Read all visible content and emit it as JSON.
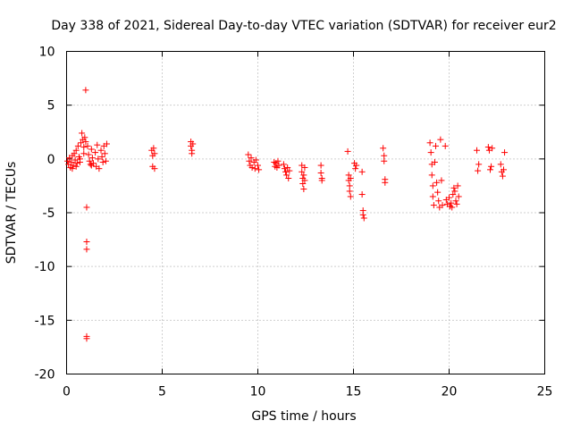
{
  "chart_data": {
    "type": "scatter",
    "title": "Day 338 of 2021, Sidereal Day-to-day VTEC variation (SDTVAR) for receiver eur2",
    "xlabel": "GPS time / hours",
    "ylabel": "SDTVAR / TECUs",
    "xlim": [
      0,
      25
    ],
    "ylim": [
      -20,
      10
    ],
    "xticks": [
      0,
      5,
      10,
      15,
      20,
      25
    ],
    "yticks": [
      -20,
      -15,
      -10,
      -5,
      0,
      5,
      10
    ],
    "grid": true,
    "marker": "+",
    "color": "#ff0000",
    "series": [
      {
        "name": "SDTVAR",
        "points": [
          [
            0.05,
            -0.2
          ],
          [
            0.1,
            -0.5
          ],
          [
            0.15,
            0.1
          ],
          [
            0.2,
            -0.8
          ],
          [
            0.25,
            -0.3
          ],
          [
            0.3,
            0.3
          ],
          [
            0.35,
            -0.6
          ],
          [
            0.4,
            0.5
          ],
          [
            0.45,
            -0.1
          ],
          [
            0.5,
            0.8
          ],
          [
            0.55,
            -0.4
          ],
          [
            0.6,
            1.2
          ],
          [
            0.65,
            0.2
          ],
          [
            0.7,
            -0.3
          ],
          [
            0.75,
            1.5
          ],
          [
            0.8,
            2.4
          ],
          [
            0.85,
            1.8
          ],
          [
            0.9,
            1.1
          ],
          [
            0.95,
            2.0
          ],
          [
            1.0,
            6.4
          ],
          [
            1.0,
            1.6
          ],
          [
            1.05,
            -4.5
          ],
          [
            1.05,
            -7.7
          ],
          [
            1.05,
            -8.4
          ],
          [
            1.05,
            -16.7
          ],
          [
            1.05,
            -16.5
          ],
          [
            1.1,
            1.2
          ],
          [
            1.15,
            0.4
          ],
          [
            1.2,
            -0.2
          ],
          [
            1.25,
            -0.5
          ],
          [
            1.3,
            0.9
          ],
          [
            1.35,
            0.1
          ],
          [
            1.4,
            -0.4
          ],
          [
            1.5,
            0.6
          ],
          [
            1.55,
            -0.7
          ],
          [
            1.6,
            1.3
          ],
          [
            1.65,
            0.0
          ],
          [
            1.7,
            -0.9
          ],
          [
            1.8,
            0.8
          ],
          [
            1.85,
            0.2
          ],
          [
            1.9,
            -0.3
          ],
          [
            1.95,
            1.2
          ],
          [
            2.0,
            0.5
          ],
          [
            2.05,
            -0.2
          ],
          [
            2.1,
            1.4
          ],
          [
            0.3,
            -0.9
          ],
          [
            0.5,
            -0.7
          ],
          [
            0.7,
            0.0
          ],
          [
            0.9,
            0.5
          ],
          [
            1.3,
            -0.6
          ],
          [
            4.45,
            0.8
          ],
          [
            4.5,
            0.3
          ],
          [
            4.5,
            -0.7
          ],
          [
            4.55,
            1.0
          ],
          [
            4.6,
            -0.9
          ],
          [
            4.6,
            0.5
          ],
          [
            6.5,
            1.6
          ],
          [
            6.5,
            1.2
          ],
          [
            6.55,
            0.8
          ],
          [
            6.55,
            0.5
          ],
          [
            6.6,
            1.4
          ],
          [
            9.5,
            0.4
          ],
          [
            9.55,
            -0.2
          ],
          [
            9.6,
            -0.6
          ],
          [
            9.65,
            0.1
          ],
          [
            9.7,
            -0.8
          ],
          [
            9.8,
            -0.3
          ],
          [
            9.85,
            -0.9
          ],
          [
            9.9,
            -0.1
          ],
          [
            10.0,
            -0.6
          ],
          [
            10.05,
            -1.0
          ],
          [
            10.85,
            -0.3
          ],
          [
            10.9,
            -0.7
          ],
          [
            10.95,
            -0.4
          ],
          [
            11.0,
            -0.8
          ],
          [
            11.05,
            -0.2
          ],
          [
            11.1,
            -0.6
          ],
          [
            11.35,
            -0.5
          ],
          [
            11.4,
            -0.9
          ],
          [
            11.45,
            -1.2
          ],
          [
            11.5,
            -1.5
          ],
          [
            11.55,
            -0.8
          ],
          [
            11.6,
            -1.8
          ],
          [
            11.65,
            -1.1
          ],
          [
            12.3,
            -0.6
          ],
          [
            12.3,
            -1.2
          ],
          [
            12.35,
            -1.8
          ],
          [
            12.35,
            -2.3
          ],
          [
            12.4,
            -2.8
          ],
          [
            12.4,
            -1.5
          ],
          [
            12.45,
            -2.0
          ],
          [
            12.45,
            -0.8
          ],
          [
            13.3,
            -0.6
          ],
          [
            13.3,
            -1.3
          ],
          [
            13.35,
            -1.8
          ],
          [
            13.35,
            -2.0
          ],
          [
            14.7,
            0.7
          ],
          [
            14.75,
            -1.5
          ],
          [
            14.75,
            -2.0
          ],
          [
            14.8,
            -2.5
          ],
          [
            14.8,
            -3.0
          ],
          [
            14.85,
            -3.5
          ],
          [
            14.85,
            -1.8
          ],
          [
            15.05,
            -0.4
          ],
          [
            15.1,
            -0.9
          ],
          [
            15.15,
            -0.6
          ],
          [
            15.45,
            -1.2
          ],
          [
            15.45,
            -3.3
          ],
          [
            15.5,
            -4.8
          ],
          [
            15.5,
            -5.2
          ],
          [
            15.55,
            -5.5
          ],
          [
            16.55,
            1.0
          ],
          [
            16.6,
            0.3
          ],
          [
            16.6,
            -0.2
          ],
          [
            16.65,
            -1.9
          ],
          [
            16.65,
            -2.2
          ],
          [
            19.0,
            1.5
          ],
          [
            19.05,
            0.6
          ],
          [
            19.1,
            -0.5
          ],
          [
            19.1,
            -1.5
          ],
          [
            19.15,
            -2.5
          ],
          [
            19.15,
            -3.5
          ],
          [
            19.2,
            -4.3
          ],
          [
            19.25,
            -0.3
          ],
          [
            19.3,
            1.2
          ],
          [
            19.35,
            -2.2
          ],
          [
            19.4,
            -3.1
          ],
          [
            19.45,
            -3.9
          ],
          [
            19.5,
            -4.5
          ],
          [
            19.55,
            1.8
          ],
          [
            19.6,
            -2.0
          ],
          [
            19.65,
            -4.3
          ],
          [
            19.8,
            1.2
          ],
          [
            19.85,
            -3.8
          ],
          [
            19.9,
            -4.2
          ],
          [
            20.0,
            -3.6
          ],
          [
            20.05,
            -4.4
          ],
          [
            20.1,
            -4.1
          ],
          [
            20.15,
            -4.5
          ],
          [
            20.2,
            -3.3
          ],
          [
            20.25,
            -2.7
          ],
          [
            20.3,
            -3.0
          ],
          [
            20.35,
            -3.9
          ],
          [
            20.4,
            -4.2
          ],
          [
            20.45,
            -2.5
          ],
          [
            20.5,
            -3.5
          ],
          [
            21.45,
            0.8
          ],
          [
            21.5,
            -1.1
          ],
          [
            21.55,
            -0.5
          ],
          [
            22.05,
            1.1
          ],
          [
            22.1,
            0.8
          ],
          [
            22.15,
            -1.0
          ],
          [
            22.2,
            -0.7
          ],
          [
            22.25,
            1.0
          ],
          [
            22.7,
            -0.5
          ],
          [
            22.75,
            -1.2
          ],
          [
            22.8,
            -1.6
          ],
          [
            22.85,
            -1.0
          ],
          [
            22.9,
            0.6
          ]
        ]
      }
    ]
  }
}
